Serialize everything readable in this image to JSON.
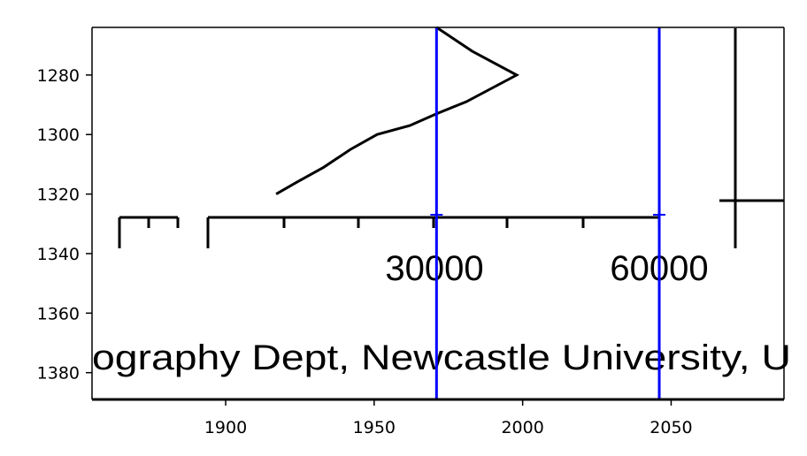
{
  "chart_data": {
    "type": "line",
    "title": "",
    "xlabel": "",
    "ylabel": "",
    "xlim": [
      1855,
      2088
    ],
    "ylim": [
      1389,
      1264
    ],
    "y_inverted": true,
    "x_ticks": [
      1900,
      1950,
      2000,
      2050
    ],
    "y_ticks": [
      1280,
      1300,
      1320,
      1340,
      1360,
      1380
    ],
    "grid": false,
    "legend": "none",
    "colors": {
      "trace": "#000000",
      "marker": "#0000ff"
    },
    "trace_points": [
      [
        1917,
        1320
      ],
      [
        1924,
        1316
      ],
      [
        1933,
        1311
      ],
      [
        1942,
        1305
      ],
      [
        1951,
        1300
      ],
      [
        1962,
        1297
      ],
      [
        1971,
        1293
      ],
      [
        1981,
        1289
      ],
      [
        1998,
        1280
      ],
      [
        1983,
        1272
      ],
      [
        1971,
        1264
      ]
    ],
    "vertical_markers": [
      1971,
      2046
    ],
    "scale_bar": {
      "labels": [
        "30000",
        "60000"
      ]
    },
    "embedded_text": "ography Dept, Newcastle University, U"
  }
}
